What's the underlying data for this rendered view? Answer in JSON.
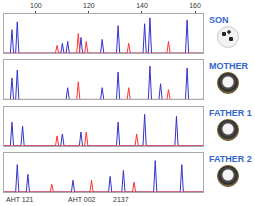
{
  "chart_data": [
    {
      "type": "line",
      "title": "SON",
      "xlim": [
        88,
        163
      ],
      "ylim": [
        0,
        100
      ],
      "xticks": [
        100,
        120,
        140,
        160
      ],
      "tick_labels": "x",
      "grid": false,
      "series": [
        {
          "color": "#3333cc",
          "x": [
            88,
            90.4,
            91,
            91.6,
            92.4,
            93,
            93.6,
            109.4,
            110,
            110.6,
            111.4,
            112,
            112.6,
            116.4,
            117,
            117.6,
            124.4,
            125,
            125.6,
            130.4,
            131,
            131.6,
            140.4,
            141,
            141.6,
            142.4,
            143,
            143.6,
            156.4,
            157,
            157.6,
            163
          ],
          "values": [
            0,
            0,
            60,
            0,
            0,
            80,
            0,
            0,
            25,
            0,
            0,
            30,
            0,
            0,
            40,
            0,
            0,
            35,
            0,
            0,
            70,
            0,
            0,
            75,
            0,
            0,
            90,
            0,
            0,
            85,
            0,
            0
          ]
        },
        {
          "color": "#ff3333",
          "x": [
            88,
            107.4,
            108,
            108.6,
            115.4,
            116,
            116.6,
            118.4,
            119,
            119.6,
            134.4,
            135,
            135.6,
            149.4,
            150,
            150.6,
            163
          ],
          "values": [
            0,
            0,
            20,
            0,
            0,
            50,
            0,
            0,
            30,
            0,
            0,
            25,
            0,
            0,
            30,
            0,
            0
          ]
        }
      ]
    },
    {
      "type": "line",
      "title": "MOTHER",
      "xlim": [
        88,
        163
      ],
      "ylim": [
        0,
        100
      ],
      "tick_labels": false,
      "grid": false,
      "series": [
        {
          "color": "#3333cc",
          "x": [
            88,
            90.4,
            91,
            91.6,
            92.4,
            93,
            93.6,
            111.4,
            112,
            112.6,
            124.4,
            125,
            125.6,
            130.4,
            131,
            131.6,
            142.4,
            143,
            143.6,
            146.4,
            147,
            147.6,
            156.4,
            157,
            157.6,
            163
          ],
          "values": [
            0,
            0,
            55,
            0,
            0,
            75,
            0,
            0,
            30,
            0,
            0,
            30,
            0,
            0,
            70,
            0,
            0,
            85,
            0,
            0,
            40,
            0,
            0,
            80,
            0,
            0
          ]
        },
        {
          "color": "#ff3333",
          "x": [
            88,
            115.4,
            116,
            116.6,
            134.4,
            135,
            135.6,
            149.4,
            150,
            150.6,
            163
          ],
          "values": [
            0,
            0,
            45,
            0,
            0,
            30,
            0,
            0,
            25,
            0,
            0
          ]
        }
      ]
    },
    {
      "type": "line",
      "title": "FATHER 1",
      "xlim": [
        88,
        163
      ],
      "ylim": [
        0,
        100
      ],
      "tick_labels": false,
      "grid": false,
      "series": [
        {
          "color": "#3333cc",
          "x": [
            88,
            90.4,
            91,
            91.6,
            94.4,
            95,
            95.6,
            109.4,
            110,
            110.6,
            116.4,
            117,
            117.6,
            130.4,
            131,
            131.6,
            140.4,
            141,
            141.6,
            152.4,
            153,
            153.6,
            163
          ],
          "values": [
            0,
            0,
            60,
            0,
            0,
            50,
            0,
            0,
            30,
            0,
            0,
            35,
            0,
            0,
            60,
            0,
            0,
            80,
            0,
            0,
            75,
            0,
            0
          ]
        },
        {
          "color": "#ff3333",
          "x": [
            88,
            107.4,
            108,
            108.6,
            118.4,
            119,
            119.6,
            137.4,
            138,
            138.6,
            163
          ],
          "values": [
            0,
            0,
            25,
            0,
            0,
            35,
            0,
            0,
            30,
            0,
            0
          ]
        }
      ]
    },
    {
      "type": "line",
      "title": "FATHER 2",
      "xlim": [
        88,
        163
      ],
      "ylim": [
        0,
        100
      ],
      "tick_labels": false,
      "grid": false,
      "series": [
        {
          "color": "#3333cc",
          "x": [
            88,
            92.4,
            93,
            93.6,
            96.4,
            97,
            97.6,
            113.4,
            114,
            114.6,
            127.4,
            128,
            128.6,
            132.4,
            133,
            133.6,
            144.4,
            145,
            145.6,
            154.4,
            155,
            155.6,
            163
          ],
          "values": [
            0,
            0,
            70,
            0,
            0,
            45,
            0,
            0,
            30,
            0,
            0,
            40,
            0,
            0,
            55,
            0,
            0,
            80,
            0,
            0,
            70,
            0,
            0
          ]
        },
        {
          "color": "#ff3333",
          "x": [
            88,
            105.4,
            106,
            106.6,
            120.4,
            121,
            121.6,
            136.4,
            137,
            137.6,
            163
          ],
          "values": [
            0,
            0,
            20,
            0,
            0,
            30,
            0,
            0,
            25,
            0,
            0
          ]
        }
      ],
      "annotations": [
        {
          "text": "AHT 121",
          "x": 94
        },
        {
          "text": "AHT 002",
          "x": 117.5
        },
        {
          "text": "2137",
          "x": 132
        }
      ]
    }
  ]
}
